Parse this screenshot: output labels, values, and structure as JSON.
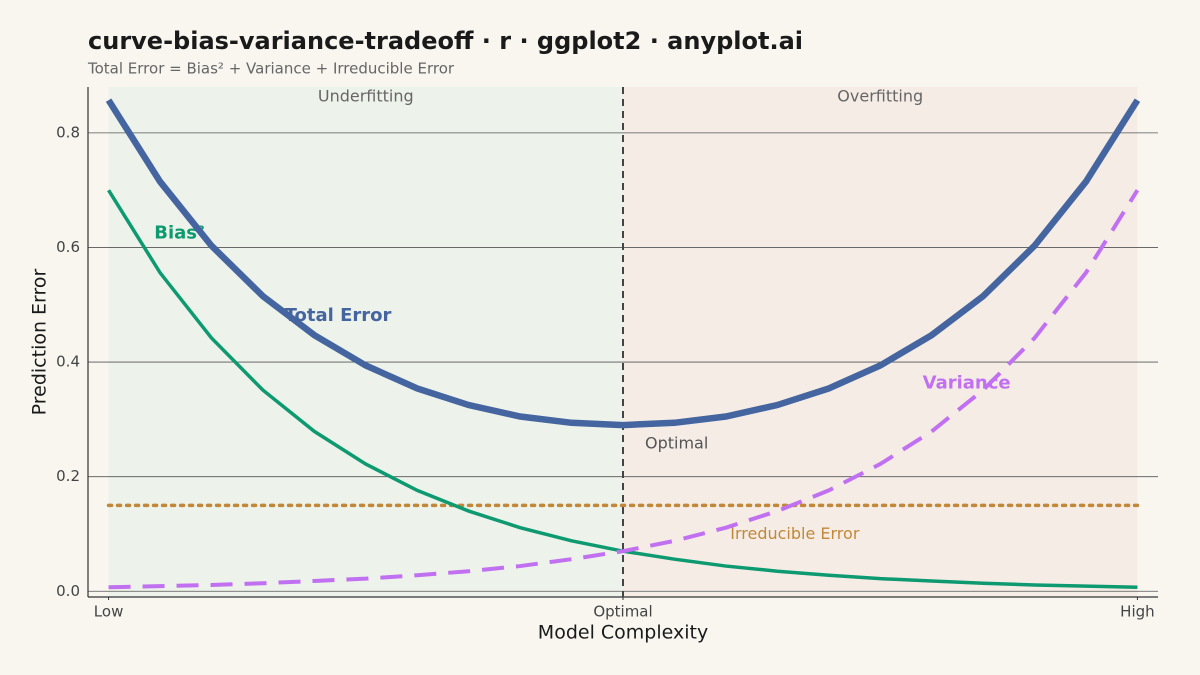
{
  "chart_data": {
    "type": "line",
    "title": "curve-bias-variance-tradeoff · r · ggplot2 · anyplot.ai",
    "subtitle": "Total Error = Bias² + Variance + Irreducible Error",
    "x_label": "Model Complexity",
    "y_label": "Prediction Error",
    "x": [
      0,
      0.05,
      0.1,
      0.15,
      0.2,
      0.25,
      0.3,
      0.35,
      0.4,
      0.45,
      0.5,
      0.55,
      0.6,
      0.65,
      0.7,
      0.75,
      0.8,
      0.85,
      0.9,
      0.95,
      1
    ],
    "series": [
      {
        "name": "Irreducible Error",
        "color": "#c08838",
        "style": "dotted",
        "width": 3.5,
        "values": [
          0.15,
          0.15,
          0.15,
          0.15,
          0.15,
          0.15,
          0.15,
          0.15,
          0.15,
          0.15,
          0.15,
          0.15,
          0.15,
          0.15,
          0.15,
          0.15,
          0.15,
          0.15,
          0.15,
          0.15,
          0.15
        ]
      },
      {
        "name": "Bias²",
        "color": "#0d9a70",
        "style": "solid",
        "width": 3.5,
        "values": [
          0.7,
          0.556,
          0.442,
          0.351,
          0.279,
          0.222,
          0.176,
          0.14,
          0.111,
          0.088,
          0.07,
          0.056,
          0.044,
          0.035,
          0.028,
          0.022,
          0.018,
          0.014,
          0.011,
          0.009,
          0.007
        ]
      },
      {
        "name": "Variance",
        "color": "#c070f0",
        "style": "dashed",
        "width": 4,
        "values": [
          0.007,
          0.009,
          0.011,
          0.014,
          0.018,
          0.022,
          0.028,
          0.035,
          0.044,
          0.056,
          0.07,
          0.088,
          0.111,
          0.14,
          0.176,
          0.222,
          0.279,
          0.351,
          0.442,
          0.556,
          0.7
        ]
      },
      {
        "name": "Total Error",
        "color": "#4565a0",
        "style": "solid",
        "width": 6.5,
        "values": [
          0.857,
          0.715,
          0.603,
          0.515,
          0.447,
          0.394,
          0.354,
          0.325,
          0.305,
          0.294,
          0.29,
          0.294,
          0.305,
          0.325,
          0.354,
          0.394,
          0.447,
          0.515,
          0.603,
          0.715,
          0.857
        ]
      }
    ],
    "optimal_x": 0.5,
    "optimal_label": "Optimal",
    "regions": [
      {
        "label": "Underfitting",
        "color": "#edf2ea"
      },
      {
        "label": "Overfitting",
        "color": "#f5ece6"
      }
    ],
    "xlim": [
      -0.02,
      1.02
    ],
    "xticks": [
      {
        "value": 0,
        "label": "Low"
      },
      {
        "value": 0.5,
        "label": "Optimal"
      },
      {
        "value": 1,
        "label": "High"
      }
    ],
    "ylim": [
      -0.01,
      0.88
    ],
    "yticks": [
      {
        "value": 0,
        "label": "0.0"
      },
      0.2,
      0.4,
      0.6,
      0.8
    ],
    "grid": true
  }
}
